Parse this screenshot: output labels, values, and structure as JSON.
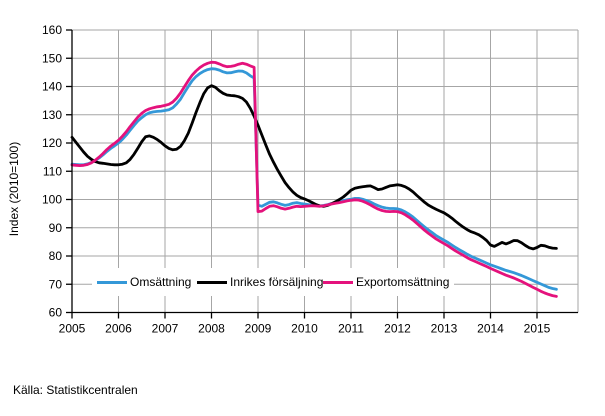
{
  "source": {
    "text": "Källa: Statistikcentralen"
  },
  "chart_data": {
    "type": "line",
    "title": "",
    "xlabel": "",
    "ylabel": "Index (2010=100)",
    "ylim": [
      60,
      160
    ],
    "grid": true,
    "legend_position": "bottom-inside",
    "x_start": "2005-01",
    "x_frequency": "monthly",
    "x_tick_labels": [
      "2005",
      "2006",
      "2007",
      "2008",
      "2009",
      "2010",
      "2011",
      "2012",
      "2013",
      "2014",
      "2015"
    ],
    "y_tick_labels": [
      "60",
      "70",
      "80",
      "90",
      "100",
      "110",
      "120",
      "130",
      "140",
      "150",
      "160"
    ],
    "colors": {
      "axis": "#000000",
      "grid": "#a6a6a6",
      "background": "#ffffff"
    },
    "series": [
      {
        "name": "Omsättning",
        "color": "#3498d8",
        "values": [
          112.5,
          112.4,
          112.3,
          112.3,
          112.6,
          113.1,
          113.8,
          114.7,
          115.8,
          117.0,
          118.1,
          119.0,
          120.0,
          121.3,
          122.8,
          124.5,
          126.2,
          127.8,
          129.0,
          130.0,
          130.7,
          131.0,
          131.2,
          131.3,
          131.5,
          131.8,
          132.5,
          133.8,
          135.5,
          137.8,
          140.0,
          142.0,
          143.5,
          144.6,
          145.4,
          146.0,
          146.3,
          146.2,
          145.8,
          145.2,
          144.8,
          144.9,
          145.2,
          145.5,
          145.4,
          144.8,
          143.8,
          143.0,
          98.0,
          97.6,
          98.3,
          99.0,
          99.2,
          98.8,
          98.3,
          97.9,
          98.2,
          98.7,
          98.9,
          98.6,
          98.4,
          98.2,
          98.1,
          97.9,
          97.7,
          97.9,
          98.2,
          98.6,
          98.9,
          99.2,
          99.6,
          99.9,
          100.1,
          100.4,
          100.4,
          100.1,
          99.6,
          99.1,
          98.4,
          97.8,
          97.3,
          97.0,
          96.8,
          96.8,
          96.7,
          96.3,
          95.6,
          94.8,
          93.8,
          92.6,
          91.4,
          90.3,
          89.2,
          88.2,
          87.2,
          86.4,
          85.6,
          84.8,
          83.9,
          83.0,
          82.2,
          81.4,
          80.6,
          79.9,
          79.3,
          78.7,
          78.1,
          77.5,
          76.9,
          76.4,
          75.9,
          75.4,
          74.9,
          74.5,
          74.1,
          73.6,
          73.1,
          72.5,
          71.9,
          71.3,
          70.7,
          70.1,
          69.5,
          68.9,
          68.5,
          68.2
        ]
      },
      {
        "name": "Inrikes försäljning",
        "color": "#000000",
        "values": [
          122.0,
          120.3,
          118.5,
          116.8,
          115.3,
          114.2,
          113.4,
          113.0,
          112.8,
          112.6,
          112.4,
          112.3,
          112.3,
          112.5,
          113.0,
          114.2,
          116.0,
          118.2,
          120.5,
          122.2,
          122.5,
          122.0,
          121.2,
          120.2,
          119.0,
          118.1,
          117.6,
          117.8,
          118.8,
          120.8,
          123.5,
          127.0,
          130.8,
          134.3,
          137.5,
          139.5,
          140.3,
          139.7,
          138.5,
          137.6,
          137.0,
          136.8,
          136.7,
          136.4,
          135.8,
          134.5,
          132.3,
          129.5,
          126.3,
          122.8,
          119.3,
          116.0,
          113.2,
          110.6,
          108.2,
          106.0,
          104.2,
          102.7,
          101.5,
          100.7,
          100.2,
          99.6,
          98.9,
          98.2,
          97.7,
          97.6,
          97.9,
          98.5,
          99.2,
          100.0,
          100.9,
          102.0,
          103.3,
          104.0,
          104.3,
          104.5,
          104.7,
          104.8,
          104.2,
          103.5,
          103.7,
          104.3,
          104.8,
          105.0,
          105.2,
          105.0,
          104.5,
          103.7,
          102.7,
          101.4,
          100.2,
          99.0,
          98.0,
          97.2,
          96.5,
          95.9,
          95.3,
          94.4,
          93.4,
          92.3,
          91.2,
          90.2,
          89.3,
          88.6,
          88.1,
          87.5,
          86.6,
          85.5,
          83.9,
          83.4,
          84.1,
          84.8,
          84.3,
          84.8,
          85.5,
          85.4,
          84.7,
          83.7,
          82.9,
          82.5,
          83.0,
          83.8,
          83.6,
          83.1,
          82.8,
          82.7
        ]
      },
      {
        "name": "Exportomsättning",
        "color": "#e4127c",
        "values": [
          112.2,
          112.1,
          112.0,
          112.1,
          112.4,
          113.0,
          113.9,
          115.0,
          116.3,
          117.7,
          118.9,
          119.9,
          121.0,
          122.4,
          124.0,
          125.8,
          127.5,
          129.2,
          130.5,
          131.5,
          132.1,
          132.5,
          132.8,
          133.0,
          133.3,
          133.7,
          134.5,
          135.9,
          137.7,
          139.9,
          142.1,
          144.0,
          145.5,
          146.7,
          147.6,
          148.2,
          148.6,
          148.5,
          148.0,
          147.4,
          147.0,
          147.1,
          147.4,
          147.9,
          148.2,
          147.9,
          147.3,
          146.8,
          95.7,
          95.9,
          96.8,
          97.6,
          97.8,
          97.4,
          96.9,
          96.6,
          96.9,
          97.3,
          97.6,
          97.5,
          97.6,
          97.7,
          97.8,
          97.7,
          97.6,
          97.8,
          98.1,
          98.4,
          98.7,
          98.9,
          99.2,
          99.5,
          99.7,
          99.9,
          99.8,
          99.4,
          98.8,
          98.1,
          97.3,
          96.6,
          96.1,
          95.8,
          95.7,
          95.8,
          95.7,
          95.3,
          94.6,
          93.7,
          92.7,
          91.5,
          90.3,
          89.1,
          88.0,
          87.0,
          86.0,
          85.2,
          84.4,
          83.6,
          82.7,
          81.8,
          81.0,
          80.2,
          79.4,
          78.7,
          78.1,
          77.5,
          76.9,
          76.3,
          75.6,
          75.0,
          74.4,
          73.8,
          73.2,
          72.7,
          72.2,
          71.6,
          71.0,
          70.3,
          69.6,
          68.9,
          68.2,
          67.5,
          66.9,
          66.4,
          66.0,
          65.7
        ]
      }
    ]
  }
}
